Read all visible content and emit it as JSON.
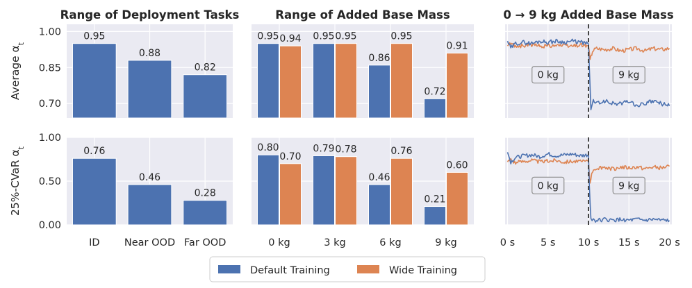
{
  "colors": {
    "default": "#4c72b0",
    "wide": "#dd8452"
  },
  "legend": {
    "items": [
      {
        "label": "Default Training",
        "color": "#4c72b0"
      },
      {
        "label": "Wide Training",
        "color": "#dd8452"
      }
    ]
  },
  "chart_data": [
    {
      "id": "tasks-avg",
      "type": "bar",
      "title": "Range of Deployment Tasks",
      "ylabel": "Average α_t",
      "categories": [
        "ID",
        "Near OOD",
        "Far OOD"
      ],
      "series": [
        {
          "values": [
            0.95,
            0.88,
            0.82
          ]
        }
      ],
      "ylim": [
        0.64,
        1.03
      ],
      "yticks": [
        "1.00",
        "0.85",
        "0.70"
      ],
      "ytick_values": [
        1.0,
        0.85,
        0.7
      ],
      "show_xticks": false
    },
    {
      "id": "tasks-cvar",
      "type": "bar",
      "ylabel": "25%-CVaR α_t",
      "categories": [
        "ID",
        "Near OOD",
        "Far OOD"
      ],
      "series": [
        {
          "values": [
            0.76,
            0.46,
            0.28
          ]
        }
      ],
      "ylim": [
        0.0,
        1.0
      ],
      "yticks": [
        "1.00",
        "0.50",
        "0.00"
      ],
      "ytick_values": [
        1.0,
        0.5,
        0.0
      ],
      "show_xticks": true
    },
    {
      "id": "mass-avg",
      "type": "bar",
      "title": "Range of Added Base Mass",
      "categories": [
        "0 kg",
        "3 kg",
        "6 kg",
        "9 kg"
      ],
      "series": [
        {
          "name": "Default Training",
          "values": [
            0.95,
            0.95,
            0.86,
            0.72
          ]
        },
        {
          "name": "Wide Training",
          "values": [
            0.94,
            0.95,
            0.95,
            0.91
          ]
        }
      ],
      "ylim": [
        0.64,
        1.03
      ],
      "ytick_values": [
        1.0,
        0.85,
        0.7
      ],
      "show_xticks": false
    },
    {
      "id": "mass-cvar",
      "type": "bar",
      "categories": [
        "0 kg",
        "3 kg",
        "6 kg",
        "9 kg"
      ],
      "series": [
        {
          "name": "Default Training",
          "values": [
            0.8,
            0.79,
            0.46,
            0.21
          ]
        },
        {
          "name": "Wide Training",
          "values": [
            0.7,
            0.78,
            0.76,
            0.6
          ]
        }
      ],
      "ylim": [
        0.0,
        1.0
      ],
      "ytick_values": [
        1.0,
        0.5,
        0.0
      ],
      "show_xticks": true
    },
    {
      "id": "time-avg",
      "type": "line",
      "title": "0 → 9 kg Added Base Mass",
      "xlim": [
        -0.3,
        20.3
      ],
      "xticks": [
        "0 s",
        "5 s",
        "10 s",
        "15 s",
        "20 s"
      ],
      "xtick_values": [
        0,
        5,
        10,
        15,
        20
      ],
      "ylim": [
        0.64,
        1.03
      ],
      "ytick_values": [
        1.0,
        0.85,
        0.7
      ],
      "vline": 10,
      "show_xticks": false,
      "annotations": [
        {
          "text": "0 kg",
          "x": 5,
          "y": 0.82
        },
        {
          "text": "9 kg",
          "x": 15,
          "y": 0.82
        }
      ],
      "series": [
        {
          "name": "Default Training",
          "segments": [
            {
              "x": [
                0,
                0.4,
                1,
                2,
                3,
                4,
                5,
                6,
                7,
                8,
                9,
                9.9
              ],
              "y": [
                0.96,
                0.93,
                0.95,
                0.955,
                0.95,
                0.96,
                0.955,
                0.96,
                0.955,
                0.96,
                0.955,
                0.95
              ]
            },
            {
              "x": [
                10,
                10.1,
                10.3,
                10.6,
                11,
                12,
                13,
                14,
                15,
                16,
                17,
                18,
                19,
                20
              ],
              "y": [
                0.95,
                0.85,
                0.68,
                0.71,
                0.7,
                0.71,
                0.7,
                0.7,
                0.71,
                0.69,
                0.7,
                0.71,
                0.7,
                0.69
              ]
            }
          ]
        },
        {
          "name": "Wide Training",
          "segments": [
            {
              "x": [
                0,
                0.4,
                1,
                2,
                3,
                4,
                5,
                6,
                7,
                8,
                9,
                9.9
              ],
              "y": [
                0.94,
                0.95,
                0.94,
                0.94,
                0.945,
                0.94,
                0.94,
                0.945,
                0.94,
                0.94,
                0.945,
                0.94
              ]
            },
            {
              "x": [
                10,
                10.2,
                10.5,
                11,
                12,
                13,
                14,
                15,
                16,
                17,
                18,
                19,
                20
              ],
              "y": [
                0.94,
                0.88,
                0.92,
                0.93,
                0.925,
                0.93,
                0.92,
                0.925,
                0.93,
                0.92,
                0.93,
                0.925,
                0.93
              ]
            }
          ]
        }
      ]
    },
    {
      "id": "time-cvar",
      "type": "line",
      "xlim": [
        -0.3,
        20.3
      ],
      "xticks": [
        "0 s",
        "5 s",
        "10 s",
        "15 s",
        "20 s"
      ],
      "xtick_values": [
        0,
        5,
        10,
        15,
        20
      ],
      "ylim": [
        0.0,
        1.0
      ],
      "ytick_values": [
        1.0,
        0.5,
        0.0
      ],
      "vline": 10,
      "show_xticks": true,
      "annotations": [
        {
          "text": "0 kg",
          "x": 5,
          "y": 0.45
        },
        {
          "text": "9 kg",
          "x": 15,
          "y": 0.45
        }
      ],
      "series": [
        {
          "name": "Default Training",
          "segments": [
            {
              "x": [
                0,
                0.4,
                1,
                2,
                3,
                4,
                5,
                6,
                7,
                8,
                9,
                9.9
              ],
              "y": [
                0.83,
                0.72,
                0.77,
                0.79,
                0.8,
                0.78,
                0.81,
                0.79,
                0.8,
                0.81,
                0.79,
                0.8
              ]
            },
            {
              "x": [
                10,
                10.1,
                10.3,
                10.6,
                11,
                12,
                13,
                14,
                15,
                16,
                17,
                18,
                19,
                20
              ],
              "y": [
                0.8,
                0.45,
                0.07,
                0.06,
                0.05,
                0.06,
                0.05,
                0.06,
                0.05,
                0.06,
                0.05,
                0.06,
                0.05,
                0.05
              ]
            }
          ]
        },
        {
          "name": "Wide Training",
          "segments": [
            {
              "x": [
                0,
                0.4,
                1,
                2,
                3,
                4,
                5,
                6,
                7,
                8,
                9,
                9.9
              ],
              "y": [
                0.72,
                0.75,
                0.71,
                0.73,
                0.74,
                0.72,
                0.73,
                0.74,
                0.72,
                0.73,
                0.72,
                0.73
              ]
            },
            {
              "x": [
                10,
                10.2,
                10.5,
                11,
                12,
                13,
                14,
                15,
                16,
                17,
                18,
                19,
                20
              ],
              "y": [
                0.73,
                0.49,
                0.62,
                0.65,
                0.66,
                0.64,
                0.66,
                0.65,
                0.66,
                0.64,
                0.66,
                0.65,
                0.67
              ]
            }
          ]
        }
      ]
    }
  ]
}
